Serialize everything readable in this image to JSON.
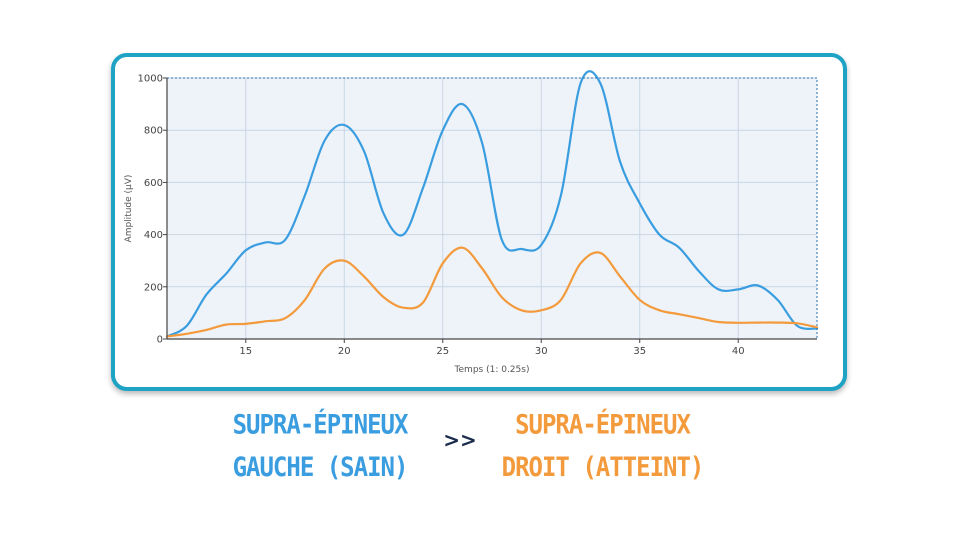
{
  "chart_data": {
    "type": "line",
    "title": "",
    "xlabel": "Temps (1: 0.25s)",
    "ylabel": "Amplitude (µV)",
    "xlim": [
      11,
      44
    ],
    "ylim": [
      0,
      1000
    ],
    "xticks": [
      15,
      20,
      25,
      30,
      35,
      40
    ],
    "yticks": [
      0,
      200,
      400,
      600,
      800,
      1000
    ],
    "grid": true,
    "legend": "none",
    "series": [
      {
        "color": "#3a9de0",
        "x": [
          11,
          12,
          13,
          14,
          15,
          16,
          17,
          18,
          19,
          20,
          21,
          22,
          23,
          24,
          25,
          26,
          27,
          28,
          29,
          30,
          31,
          32,
          33,
          34,
          35,
          36,
          37,
          38,
          39,
          40,
          41,
          42,
          43,
          44
        ],
        "y": [
          10,
          50,
          170,
          250,
          340,
          370,
          380,
          550,
          760,
          820,
          720,
          480,
          400,
          580,
          800,
          900,
          750,
          380,
          345,
          360,
          550,
          980,
          980,
          680,
          520,
          400,
          350,
          260,
          190,
          190,
          205,
          150,
          50,
          40
        ]
      },
      {
        "color": "#f39a3c",
        "x": [
          11,
          12,
          13,
          14,
          15,
          16,
          17,
          18,
          19,
          20,
          21,
          22,
          23,
          24,
          25,
          26,
          27,
          28,
          29,
          30,
          31,
          32,
          33,
          34,
          35,
          36,
          37,
          38,
          39,
          40,
          41,
          42,
          43,
          44
        ],
        "y": [
          10,
          20,
          35,
          55,
          58,
          68,
          80,
          150,
          270,
          300,
          240,
          160,
          120,
          140,
          290,
          350,
          270,
          160,
          110,
          110,
          150,
          290,
          330,
          240,
          150,
          110,
          95,
          80,
          65,
          62,
          63,
          63,
          60,
          45
        ]
      }
    ]
  },
  "captions": {
    "left": {
      "line1": "SUPRA-ÉPINEUX",
      "line2": "GAUCHE (SAIN)",
      "color": "#3a9de0"
    },
    "comparator": ">>",
    "right": {
      "line1": "SUPRA-ÉPINEUX",
      "line2": "DROIT (ATTEINT)",
      "color": "#f39a3c"
    }
  }
}
